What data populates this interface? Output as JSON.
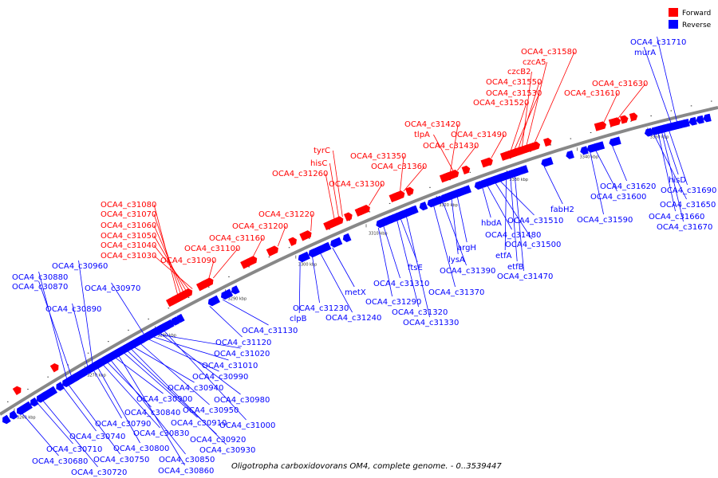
{
  "legend": [
    {
      "label": "Forward",
      "color": "#ff0000"
    },
    {
      "label": "Reverse",
      "color": "#0000ff"
    }
  ],
  "caption": "Oligotropha carboxidovorans OM4, complete genome. - 0..3539447",
  "colors": {
    "forward": "#ff0000",
    "reverse": "#0000ff",
    "backbone": "#888888"
  },
  "ticks": [
    "3260 kbp",
    "3270 kbp",
    "3280 kbp",
    "3290 kbp",
    "3300 kbp",
    "3310 kbp",
    "3320 kbp",
    "3330 kbp",
    "3340 kbp",
    "3350 kbp"
  ],
  "genes": {
    "forward": [
      {
        "name": "OCA4_c31580",
        "t": 0.744
      },
      {
        "name": "czcA5",
        "t": 0.733
      },
      {
        "name": "czcB2",
        "t": 0.727
      },
      {
        "name": "OCA4_c31550",
        "t": 0.722
      },
      {
        "name": "OCA4_c31530",
        "t": 0.716
      },
      {
        "name": "OCA4_c31520",
        "t": 0.711
      },
      {
        "name": "OCA4_c31630",
        "t": 0.861
      },
      {
        "name": "OCA4_c31610",
        "t": 0.841
      },
      {
        "name": "OCA4_c31420",
        "t": 0.627
      },
      {
        "name": "tlpA",
        "t": 0.632
      },
      {
        "name": "OCA4_c31430",
        "t": 0.637
      },
      {
        "name": "OCA4_c31490",
        "t": 0.684
      },
      {
        "name": "tyrC",
        "t": 0.477
      },
      {
        "name": "hisC",
        "t": 0.472
      },
      {
        "name": "OCA4_c31260",
        "t": 0.466
      },
      {
        "name": "OCA4_c31350",
        "t": 0.557
      },
      {
        "name": "OCA4_c31360",
        "t": 0.562
      },
      {
        "name": "OCA4_c31300",
        "t": 0.514
      },
      {
        "name": "OCA4_c31220",
        "t": 0.433
      },
      {
        "name": "OCA4_c31200",
        "t": 0.387
      },
      {
        "name": "OCA4_c31160",
        "t": 0.351
      },
      {
        "name": "OCA4_c31100",
        "t": 0.297
      },
      {
        "name": "OCA4_c31090",
        "t": 0.29
      },
      {
        "name": "OCA4_c31080",
        "t": 0.248
      },
      {
        "name": "OCA4_c31070",
        "t": 0.252
      },
      {
        "name": "OCA4_c31060",
        "t": 0.256
      },
      {
        "name": "OCA4_c31050",
        "t": 0.26
      },
      {
        "name": "OCA4_c31040",
        "t": 0.264
      },
      {
        "name": "OCA4_c31030",
        "t": 0.268
      }
    ],
    "reverse": [
      {
        "name": "OCA4_c31710",
        "t": 0.945
      },
      {
        "name": "murA",
        "t": 0.938
      },
      {
        "name": "OCA4_c30960",
        "t": 0.13
      },
      {
        "name": "OCA4_c30880",
        "t": 0.095
      },
      {
        "name": "OCA4_c30870",
        "t": 0.102
      },
      {
        "name": "OCA4_c30970",
        "t": 0.205
      },
      {
        "name": "OCA4_c30890",
        "t": 0.124
      },
      {
        "name": "fabH2",
        "t": 0.758
      },
      {
        "name": "OCA4_c31620",
        "t": 0.853
      },
      {
        "name": "OCA4_c31600",
        "t": 0.83
      },
      {
        "name": "OCA4_c31590",
        "t": 0.822
      },
      {
        "name": "hisD",
        "t": 0.925
      },
      {
        "name": "OCA4_c31690",
        "t": 0.932
      },
      {
        "name": "OCA4_c31650",
        "t": 0.911
      },
      {
        "name": "OCA4_c31660",
        "t": 0.917
      },
      {
        "name": "OCA4_c31670",
        "t": 0.922
      },
      {
        "name": "OCA4_c31510",
        "t": 0.697
      },
      {
        "name": "OCA4_c31480",
        "t": 0.679
      },
      {
        "name": "hbdA",
        "t": 0.672
      },
      {
        "name": "OCA4_c31500",
        "t": 0.69
      },
      {
        "name": "etfA",
        "t": 0.705
      },
      {
        "name": "etfB",
        "t": 0.711
      },
      {
        "name": "OCA4_c31470",
        "t": 0.717
      },
      {
        "name": "argH",
        "t": 0.637
      },
      {
        "name": "lysA",
        "t": 0.629
      },
      {
        "name": "OCA4_c31390",
        "t": 0.617
      },
      {
        "name": "ftsE",
        "t": 0.558
      },
      {
        "name": "OCA4_c31370",
        "t": 0.604
      },
      {
        "name": "OCA4_c31310",
        "t": 0.534
      },
      {
        "name": "OCA4_c31290",
        "t": 0.527
      },
      {
        "name": "OCA4_c31320",
        "t": 0.553
      },
      {
        "name": "OCA4_c31330",
        "t": 0.566
      },
      {
        "name": "metX",
        "t": 0.463
      },
      {
        "name": "OCA4_c31230",
        "t": 0.435
      },
      {
        "name": "clpB",
        "t": 0.418
      },
      {
        "name": "OCA4_c31240",
        "t": 0.446
      },
      {
        "name": "OCA4_c31130",
        "t": 0.31
      },
      {
        "name": "OCA4_c31120",
        "t": 0.292
      },
      {
        "name": "OCA4_c31020",
        "t": 0.218
      },
      {
        "name": "OCA4_c31010",
        "t": 0.212
      },
      {
        "name": "OCA4_c30990",
        "t": 0.206
      },
      {
        "name": "OCA4_c30940",
        "t": 0.186
      },
      {
        "name": "OCA4_c30980",
        "t": 0.222
      },
      {
        "name": "OCA4_c30900",
        "t": 0.16
      },
      {
        "name": "OCA4_c30950",
        "t": 0.195
      },
      {
        "name": "OCA4_c30840",
        "t": 0.149
      },
      {
        "name": "OCA4_c30910",
        "t": 0.172
      },
      {
        "name": "OCA4_c31000",
        "t": 0.228
      },
      {
        "name": "OCA4_c30790",
        "t": 0.13
      },
      {
        "name": "OCA4_c30830",
        "t": 0.143
      },
      {
        "name": "OCA4_c30740",
        "t": 0.088
      },
      {
        "name": "OCA4_c30920",
        "t": 0.177
      },
      {
        "name": "OCA4_c30800",
        "t": 0.136
      },
      {
        "name": "OCA4_c30930",
        "t": 0.182
      },
      {
        "name": "OCA4_c30710",
        "t": 0.052
      },
      {
        "name": "OCA4_c30850",
        "t": 0.154
      },
      {
        "name": "OCA4_c30680",
        "t": 0.03
      },
      {
        "name": "OCA4_c30750",
        "t": 0.095
      },
      {
        "name": "OCA4_c30720",
        "t": 0.059
      },
      {
        "name": "OCA4_c30860",
        "t": 0.165
      }
    ]
  }
}
